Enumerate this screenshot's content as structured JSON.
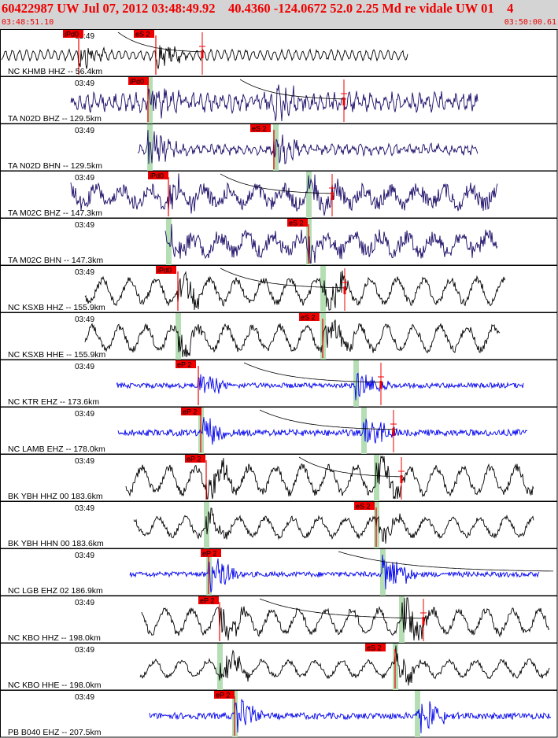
{
  "header": {
    "title": "60422987 UW Jul 07, 2012 03:48:49.92    40.4360 -124.0672 52.0 2.25 Md re vidale UW 01    4",
    "start_time": "03:48:51.10",
    "end_time": "03:50:00.61"
  },
  "colors": {
    "header_bg": "#d4d4d4",
    "header_text": "#ee0000",
    "pick": "#ee0000",
    "pick_band": "#b5deb5",
    "trace_black": "#000000",
    "trace_navy": "#1a0a66",
    "trace_blue": "#0000ee"
  },
  "panels": [
    {
      "time": "03:49",
      "label": "NC KHMB HHZ -- 56.4km",
      "color": "black",
      "picks": [
        "iPd0",
        "eS 2"
      ]
    },
    {
      "time": "03:49",
      "label": "TA N02D BHZ -- 129.5km",
      "color": "navy",
      "picks": [
        "iPd0"
      ]
    },
    {
      "time": "03:49",
      "label": "TA N02D BHN -- 129.5km",
      "color": "navy",
      "picks": [
        "eS 2"
      ]
    },
    {
      "time": "03:49",
      "label": "TA M02C BHZ -- 147.3km",
      "color": "navy",
      "picks": [
        "iPd0"
      ]
    },
    {
      "time": "03:49",
      "label": "TA M02C BHN -- 147.3km",
      "color": "navy",
      "picks": [
        "eS 2"
      ]
    },
    {
      "time": "03:49",
      "label": "NC KSXB HHZ -- 155.9km",
      "color": "black",
      "picks": [
        "iPd0"
      ]
    },
    {
      "time": "03:49",
      "label": "NC KSXB HHE -- 155.9km",
      "color": "black",
      "picks": [
        "eS 2"
      ]
    },
    {
      "time": "03:49",
      "label": "NC KTR EHZ -- 173.6km",
      "color": "blue",
      "picks": [
        "eP 2"
      ]
    },
    {
      "time": "03:49",
      "label": "NC LAMB EHZ -- 178.0km",
      "color": "blue",
      "picks": [
        "eP 2"
      ]
    },
    {
      "time": "03:49",
      "label": "BK YBH HHZ 00 183.6km",
      "color": "black",
      "picks": [
        "eP 2"
      ]
    },
    {
      "time": "03:49",
      "label": "BK YBH HHN 00 183.6km",
      "color": "black",
      "picks": [
        "eS 2"
      ]
    },
    {
      "time": "03:49",
      "label": "NC LGB EHZ 02 186.9km",
      "color": "blue",
      "picks": [
        "eP 2"
      ]
    },
    {
      "time": "03:49",
      "label": "NC KBO HHZ -- 198.0km",
      "color": "black",
      "picks": [
        "eP 2"
      ]
    },
    {
      "time": "03:49",
      "label": "NC KBO HHE -- 198.0km",
      "color": "black",
      "picks": [
        "eS 2"
      ]
    },
    {
      "time": "03:49",
      "label": "PB B040 EHZ -- 207.5km",
      "color": "blue",
      "picks": [
        "eP 2"
      ]
    }
  ]
}
